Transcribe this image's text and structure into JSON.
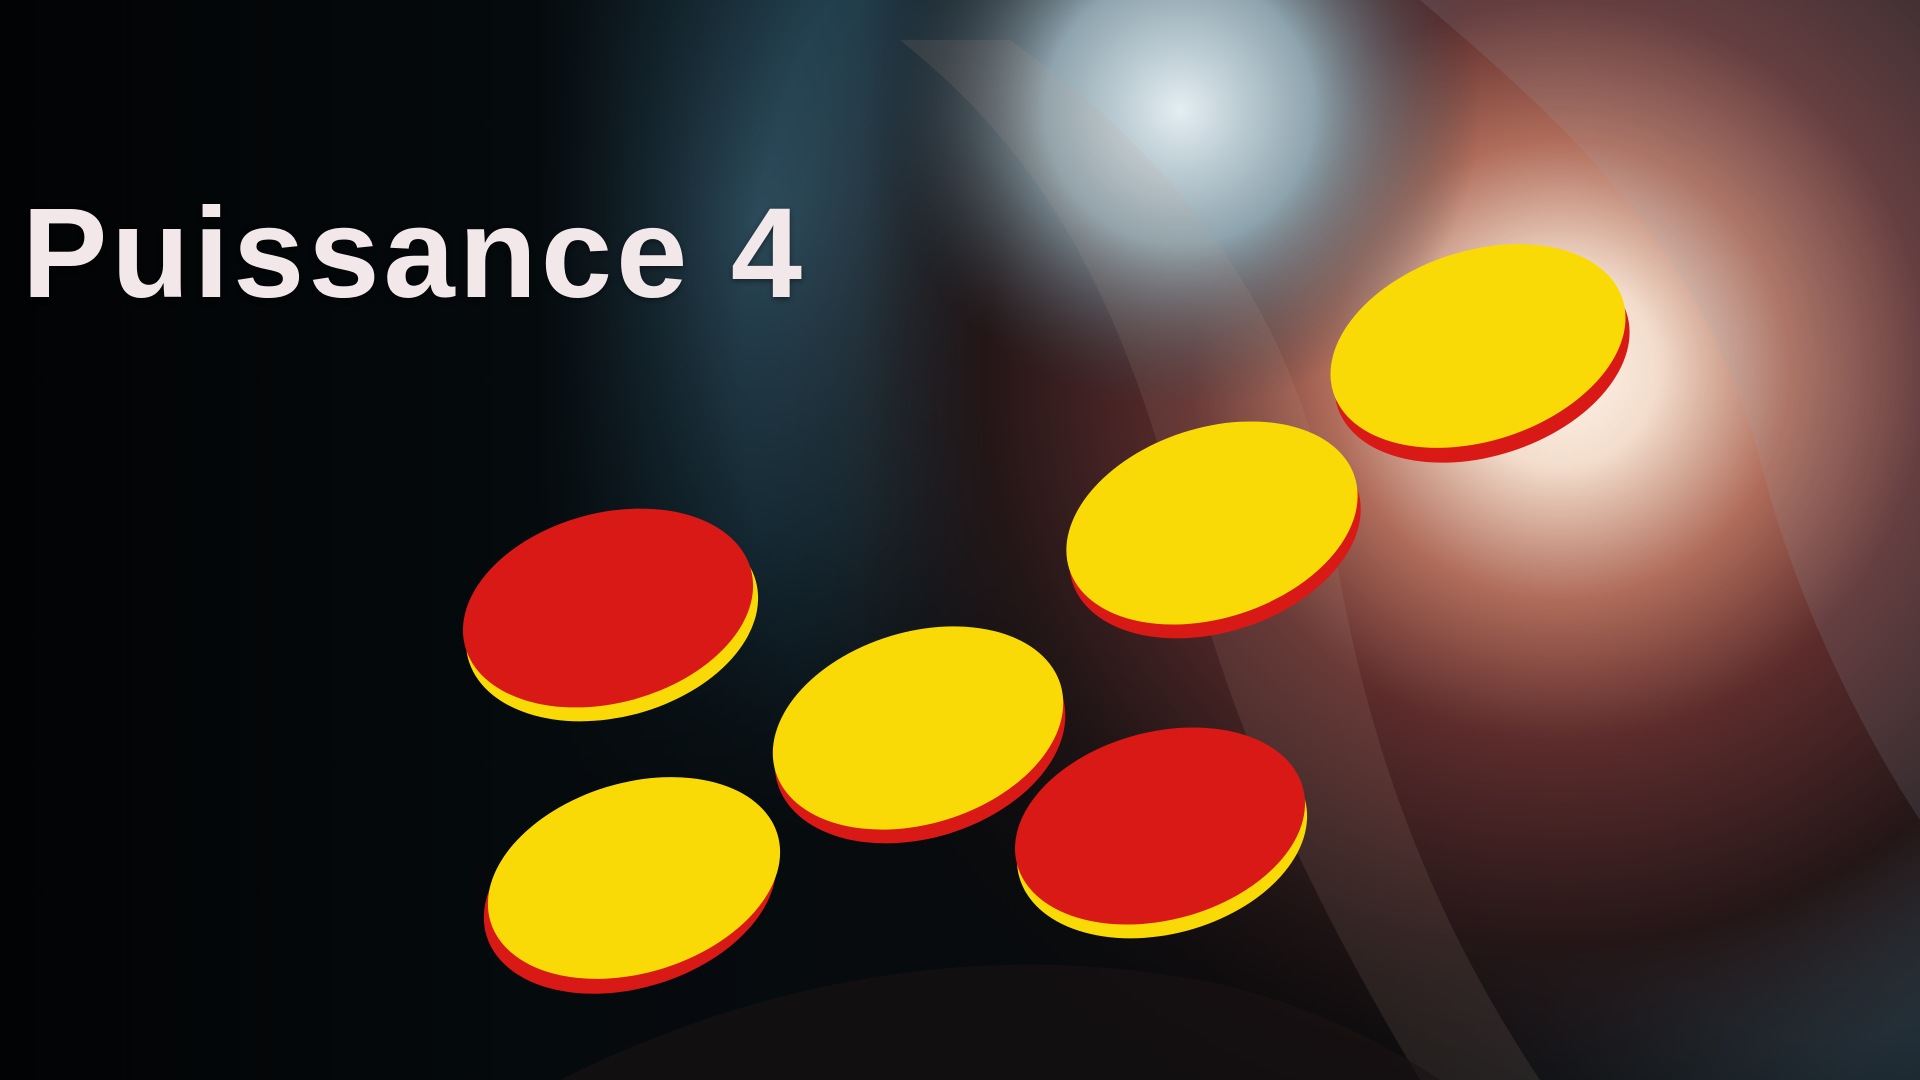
{
  "title": "Puissance 4",
  "colors": {
    "red": "#d81915",
    "yellow": "#f9da06",
    "title_text": "#f2e8ea"
  },
  "discs": [
    {
      "name": "disc-red-top-left",
      "face": "red",
      "edge": "yellow"
    },
    {
      "name": "disc-yellow-bottom-left",
      "face": "yellow",
      "edge": "red"
    },
    {
      "name": "disc-yellow-center",
      "face": "yellow",
      "edge": "red"
    },
    {
      "name": "disc-red-bottom-center",
      "face": "red",
      "edge": "yellow"
    },
    {
      "name": "disc-yellow-upper-center",
      "face": "yellow",
      "edge": "red"
    },
    {
      "name": "disc-yellow-top-right",
      "face": "yellow",
      "edge": "red"
    }
  ]
}
